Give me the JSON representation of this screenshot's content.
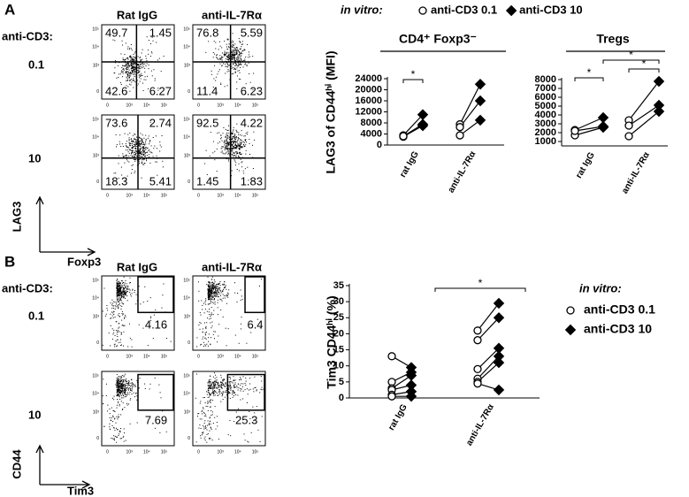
{
  "panel_a": {
    "label": "A",
    "columns": [
      "Rat IgG",
      "anti-IL-7Rα"
    ],
    "row_title": "anti-CD3:",
    "rows": [
      "0.1",
      "10"
    ],
    "y_axis": "LAG3",
    "x_axis": "Foxp3",
    "plots": [
      [
        49.7,
        1.45,
        42.6,
        6.27
      ],
      [
        76.8,
        5.59,
        11.4,
        6.23
      ],
      [
        73.6,
        2.74,
        18.3,
        5.41
      ],
      [
        92.5,
        4.22,
        1.45,
        1.83
      ]
    ]
  },
  "panel_b": {
    "label": "B",
    "columns": [
      "Rat IgG",
      "anti-IL-7Rα"
    ],
    "row_title": "anti-CD3:",
    "rows": [
      "0.1",
      "10"
    ],
    "y_axis": "CD44",
    "x_axis": "Tim3",
    "plots": [
      4.16,
      6.4,
      7.69,
      25.3
    ]
  },
  "flow_ticks": {
    "y": [
      "10⁵",
      "10⁴",
      "10³",
      "0"
    ],
    "x": [
      "0",
      "10³",
      "10⁴",
      "10⁵"
    ]
  },
  "chart_data": [
    {
      "type": "paired-dot",
      "legend_title": "in vitro:",
      "title": "CD4⁺ Foxp3⁻",
      "ylabel": "LAG3 of CD44ʰⁱ (MFI)",
      "categories": [
        "rat IgG",
        "anti-IL-7Rα"
      ],
      "series": [
        {
          "name": "anti-CD3 0.1",
          "marker": "circle",
          "color": "#000000",
          "values": [
            [
              3500,
              3000,
              3200
            ],
            [
              7500,
              6500,
              3500
            ]
          ]
        },
        {
          "name": "anti-CD3 10",
          "marker": "diamond",
          "color": "#000000",
          "values": [
            [
              11000,
              7000,
              7500
            ],
            [
              22000,
              16000,
              9000
            ]
          ]
        }
      ],
      "ylim": [
        0,
        24000
      ],
      "yticks": [
        0,
        4000,
        8000,
        12000,
        16000,
        20000,
        24000
      ],
      "annotations": [
        "*"
      ]
    },
    {
      "type": "paired-dot",
      "title": "Tregs",
      "categories": [
        "rat IgG",
        "anti-IL-7Rα"
      ],
      "series": [
        {
          "marker": "circle",
          "color": "#000000",
          "values": [
            [
              2300,
              1700,
              2200
            ],
            [
              3400,
              2800,
              1600
            ]
          ]
        },
        {
          "marker": "diamond",
          "color": "#000000",
          "values": [
            [
              3700,
              2600,
              2700
            ],
            [
              7800,
              5100,
              4400
            ]
          ]
        }
      ],
      "ylim": [
        500,
        8000
      ],
      "yticks": [
        1000,
        2000,
        3000,
        4000,
        5000,
        6000,
        7000,
        8000
      ],
      "annotations": [
        "*",
        "*",
        "*"
      ]
    },
    {
      "type": "paired-dot",
      "legend_title": "in vitro:",
      "ylabel": "Tim3 CD44ʰⁱ (%)",
      "categories": [
        "rat IgG",
        "anti-IL-7Rα"
      ],
      "series": [
        {
          "name": "anti-CD3 0.1",
          "marker": "circle",
          "color": "#000000",
          "values": [
            [
              13,
              5,
              3,
              2.5,
              1,
              0.5
            ],
            [
              21,
              18,
              9,
              6,
              5,
              4.5
            ]
          ]
        },
        {
          "name": "anti-CD3 10",
          "marker": "diamond",
          "color": "#000000",
          "values": [
            [
              9.5,
              8,
              7,
              4,
              2,
              0.5
            ],
            [
              29.5,
              25,
              15.5,
              13,
              11,
              2.5
            ]
          ]
        }
      ],
      "ylim": [
        0,
        35
      ],
      "yticks": [
        0,
        5,
        10,
        15,
        20,
        25,
        30,
        35
      ],
      "annotations": [
        "*"
      ]
    }
  ]
}
